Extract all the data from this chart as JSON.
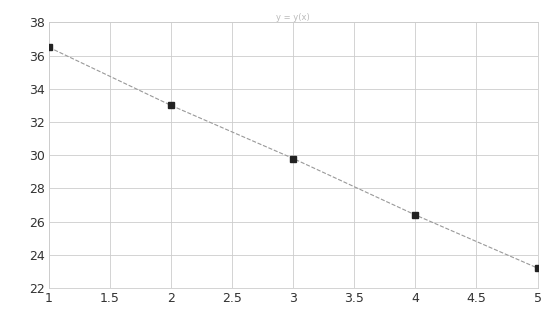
{
  "x": [
    1,
    2,
    3,
    4,
    5
  ],
  "y": [
    36.5,
    33.0,
    29.8,
    26.4,
    23.2
  ],
  "xlim": [
    1,
    5
  ],
  "ylim": [
    22,
    38
  ],
  "xticks": [
    1,
    1.5,
    2,
    2.5,
    3,
    3.5,
    4,
    4.5,
    5
  ],
  "yticks": [
    22,
    24,
    26,
    28,
    30,
    32,
    34,
    36,
    38
  ],
  "title": "y = y(x)",
  "title_color": "#bbbbbb",
  "grid_color": "#cccccc",
  "line_color": "#999999",
  "marker_color": "#222222",
  "marker_size": 5,
  "line_width": 0.8,
  "line_style": "--",
  "tick_labelsize": 9,
  "tick_color": "#333333"
}
